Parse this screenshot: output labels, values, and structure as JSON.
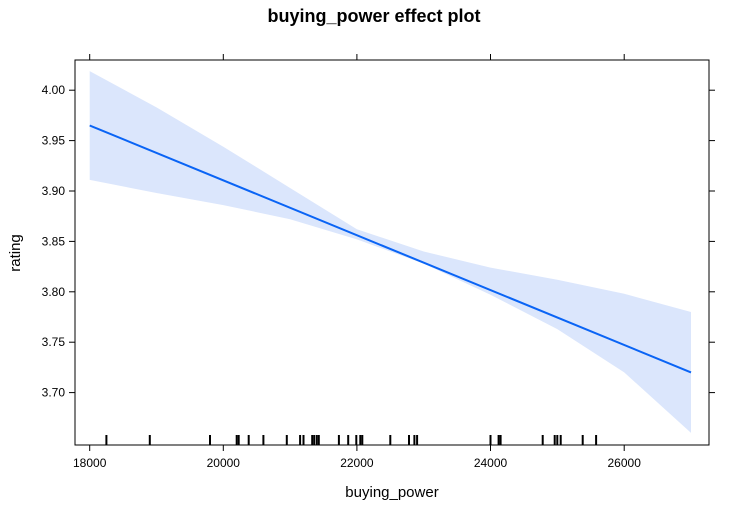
{
  "chart_data": {
    "type": "line",
    "title": "buying_power effect plot",
    "xlabel": "buying_power",
    "ylabel": "rating",
    "xlim": [
      17780,
      27270
    ],
    "ylim": [
      3.648,
      4.03
    ],
    "xticks": [
      18000,
      20000,
      22000,
      24000,
      26000
    ],
    "yticks": [
      3.7,
      3.75,
      3.8,
      3.85,
      3.9,
      3.95,
      4.0
    ],
    "ytick_labels": [
      "3.70",
      "3.75",
      "3.80",
      "3.85",
      "3.90",
      "3.95",
      "4.00"
    ],
    "grid": false,
    "series": [
      {
        "x": [
          18000,
          27000
        ],
        "y": [
          3.965,
          3.72
        ]
      }
    ],
    "confidence_band": {
      "x": [
        18000,
        19000,
        20000,
        21000,
        22000,
        23000,
        24000,
        25000,
        26000,
        27000
      ],
      "upper": [
        4.019,
        3.983,
        3.944,
        3.903,
        3.862,
        3.84,
        3.824,
        3.812,
        3.798,
        3.78
      ],
      "lower": [
        3.911,
        3.898,
        3.886,
        3.872,
        3.852,
        3.828,
        3.797,
        3.763,
        3.72,
        3.66
      ]
    },
    "rug": [
      18250,
      18900,
      19800,
      20200,
      20230,
      20380,
      20600,
      20950,
      21150,
      21200,
      21330,
      21360,
      21400,
      21430,
      21730,
      21870,
      21990,
      22050,
      22080,
      22500,
      22780,
      22860,
      22900,
      24000,
      24120,
      24150,
      24780,
      24960,
      25000,
      25050,
      25380,
      25580
    ],
    "colors": {
      "line": "#0a64f5",
      "band": "#dbe6fc",
      "axes": "#000000"
    }
  }
}
